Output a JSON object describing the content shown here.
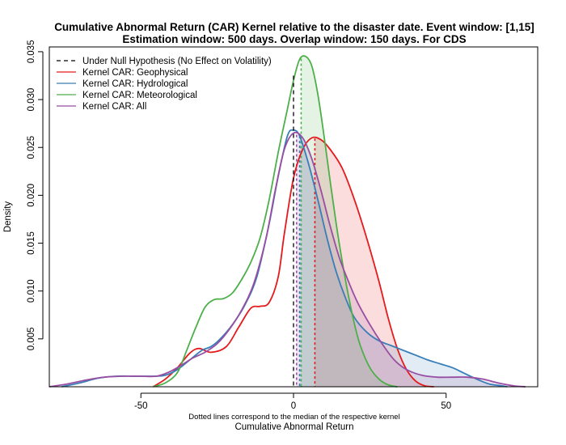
{
  "chart_data": {
    "type": "area",
    "title_line1": "Cumulative Abnormal Return (CAR) Kernel relative to the disaster date. Event window: [1,15]",
    "title_line2": "Estimation window: 500 days. Overlap window: 150 days. For CDS",
    "xlabel": "Cumulative Abnormal Return",
    "xsublabel": "Dotted lines correspond to the median of the respective kernel",
    "ylabel": "Density",
    "xlim": [
      -80,
      80
    ],
    "ylim": [
      0,
      0.0355
    ],
    "xticks": [
      -50,
      0,
      50
    ],
    "xtick_labels": [
      "-50",
      "0",
      "50"
    ],
    "yticks": [
      0.005,
      0.01,
      0.015,
      0.02,
      0.025,
      0.03,
      0.035
    ],
    "ytick_labels": [
      "0.005",
      "0.010",
      "0.015",
      "0.020",
      "0.025",
      "0.030",
      "0.035"
    ],
    "legend_position": "top-left",
    "null_hypothesis": {
      "name": "Under Null Hypothesis (No Effect on Volatility)",
      "x": 0,
      "color": "#000000"
    },
    "series": [
      {
        "name": "Kernel CAR: Geophysical",
        "color": "#E41A1C",
        "fill": "rgba(228,26,28,0.15)",
        "median": 7,
        "points": [
          [
            -46,
            0
          ],
          [
            -42,
            0.0008
          ],
          [
            -38,
            0.002
          ],
          [
            -34,
            0.0035
          ],
          [
            -31,
            0.004
          ],
          [
            -27,
            0.0036
          ],
          [
            -22,
            0.0042
          ],
          [
            -18,
            0.0062
          ],
          [
            -14,
            0.0082
          ],
          [
            -11,
            0.0084
          ],
          [
            -8,
            0.0088
          ],
          [
            -5,
            0.0115
          ],
          [
            -3,
            0.016
          ],
          [
            0,
            0.0218
          ],
          [
            3,
            0.0248
          ],
          [
            6,
            0.026
          ],
          [
            9,
            0.0258
          ],
          [
            12,
            0.0248
          ],
          [
            16,
            0.0228
          ],
          [
            20,
            0.0195
          ],
          [
            24,
            0.0155
          ],
          [
            28,
            0.011
          ],
          [
            31,
            0.0072
          ],
          [
            34,
            0.004
          ],
          [
            37,
            0.0018
          ],
          [
            40,
            0.0006
          ],
          [
            43,
            0.0001
          ],
          [
            46,
            0
          ]
        ]
      },
      {
        "name": "Kernel CAR: Hydrological",
        "color": "#377EB8",
        "fill": "rgba(55,126,184,0.15)",
        "median": 2,
        "points": [
          [
            -76,
            0
          ],
          [
            -70,
            0.0004
          ],
          [
            -64,
            0.0009
          ],
          [
            -58,
            0.0011
          ],
          [
            -52,
            0.0011
          ],
          [
            -46,
            0.0011
          ],
          [
            -42,
            0.0012
          ],
          [
            -38,
            0.0018
          ],
          [
            -34,
            0.0028
          ],
          [
            -30,
            0.0038
          ],
          [
            -27,
            0.0042
          ],
          [
            -24,
            0.005
          ],
          [
            -20,
            0.0065
          ],
          [
            -16,
            0.0085
          ],
          [
            -12,
            0.0115
          ],
          [
            -8,
            0.017
          ],
          [
            -5,
            0.022
          ],
          [
            -2,
            0.0262
          ],
          [
            0,
            0.0268
          ],
          [
            2,
            0.0262
          ],
          [
            5,
            0.0232
          ],
          [
            8,
            0.0195
          ],
          [
            11,
            0.0155
          ],
          [
            14,
            0.012
          ],
          [
            17,
            0.0093
          ],
          [
            20,
            0.0072
          ],
          [
            24,
            0.0057
          ],
          [
            28,
            0.0048
          ],
          [
            32,
            0.0043
          ],
          [
            36,
            0.0038
          ],
          [
            40,
            0.0033
          ],
          [
            44,
            0.0028
          ],
          [
            48,
            0.0024
          ],
          [
            52,
            0.002
          ],
          [
            56,
            0.0014
          ],
          [
            60,
            0.0008
          ],
          [
            64,
            0.0003
          ],
          [
            68,
            0.0001
          ],
          [
            70,
            0
          ]
        ]
      },
      {
        "name": "Kernel CAR: Meteorological",
        "color": "#4DAF4A",
        "fill": "rgba(77,175,74,0.15)",
        "median": 2.5,
        "points": [
          [
            -46,
            0
          ],
          [
            -42,
            0.0004
          ],
          [
            -38,
            0.0015
          ],
          [
            -35,
            0.0038
          ],
          [
            -32,
            0.0062
          ],
          [
            -29,
            0.0083
          ],
          [
            -26,
            0.0091
          ],
          [
            -23,
            0.0092
          ],
          [
            -20,
            0.0098
          ],
          [
            -17,
            0.0112
          ],
          [
            -14,
            0.013
          ],
          [
            -11,
            0.0155
          ],
          [
            -8,
            0.0195
          ],
          [
            -5,
            0.0245
          ],
          [
            -2,
            0.029
          ],
          [
            0,
            0.032
          ],
          [
            2,
            0.0342
          ],
          [
            4,
            0.0345
          ],
          [
            6,
            0.0335
          ],
          [
            8,
            0.0305
          ],
          [
            10,
            0.0262
          ],
          [
            12,
            0.0215
          ],
          [
            14,
            0.017
          ],
          [
            16,
            0.013
          ],
          [
            18,
            0.0095
          ],
          [
            20,
            0.0065
          ],
          [
            22,
            0.0042
          ],
          [
            25,
            0.002
          ],
          [
            28,
            0.0008
          ],
          [
            31,
            0.0002
          ],
          [
            34,
            0
          ]
        ]
      },
      {
        "name": "Kernel CAR: All",
        "color": "#984EA3",
        "fill": "rgba(152,78,163,0.15)",
        "median": 1,
        "points": [
          [
            -80,
            0
          ],
          [
            -74,
            0.0003
          ],
          [
            -68,
            0.0007
          ],
          [
            -62,
            0.001
          ],
          [
            -56,
            0.0011
          ],
          [
            -50,
            0.0011
          ],
          [
            -45,
            0.0011
          ],
          [
            -41,
            0.0015
          ],
          [
            -37,
            0.0022
          ],
          [
            -33,
            0.003
          ],
          [
            -29,
            0.0036
          ],
          [
            -25,
            0.0045
          ],
          [
            -21,
            0.006
          ],
          [
            -17,
            0.008
          ],
          [
            -13,
            0.0108
          ],
          [
            -9,
            0.0155
          ],
          [
            -6,
            0.0205
          ],
          [
            -3,
            0.0248
          ],
          [
            0,
            0.0265
          ],
          [
            3,
            0.026
          ],
          [
            6,
            0.0238
          ],
          [
            9,
            0.0205
          ],
          [
            12,
            0.0168
          ],
          [
            15,
            0.0135
          ],
          [
            18,
            0.011
          ],
          [
            21,
            0.0088
          ],
          [
            25,
            0.0065
          ],
          [
            29,
            0.0045
          ],
          [
            33,
            0.0028
          ],
          [
            37,
            0.0018
          ],
          [
            42,
            0.0012
          ],
          [
            47,
            0.001
          ],
          [
            52,
            0.001
          ],
          [
            57,
            0.001
          ],
          [
            62,
            0.0008
          ],
          [
            67,
            0.0004
          ],
          [
            72,
            0.0001
          ],
          [
            76,
            0
          ]
        ]
      }
    ]
  }
}
